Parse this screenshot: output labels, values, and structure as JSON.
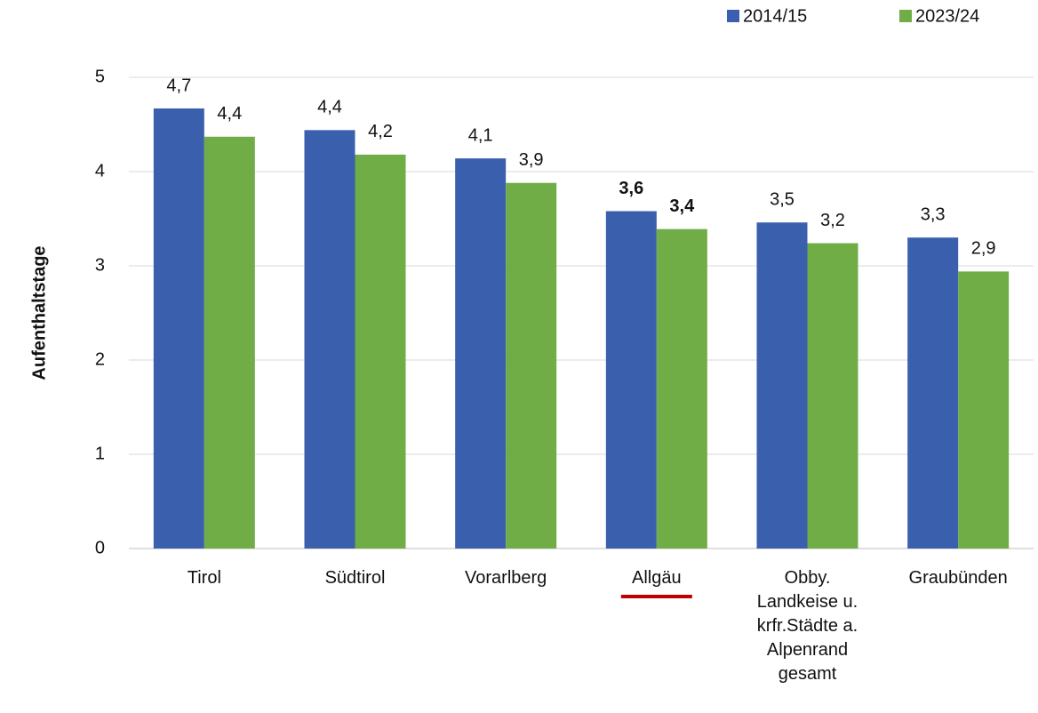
{
  "chart_data": {
    "type": "bar",
    "y_label": "Aufenthaltstage",
    "categories": [
      "Tirol",
      "Südtirol",
      "Vorarlberg",
      "Allgäu",
      "Obby.\nLandkeise u.\nkrfr.Städte a.\nAlpenrand\ngesamt",
      "Graubünden"
    ],
    "series": [
      {
        "name": "2014/15",
        "color": "#3a60ad",
        "values": [
          4.67,
          4.44,
          4.14,
          3.58,
          3.46,
          3.3
        ],
        "value_labels": [
          "4,7",
          "4,4",
          "4,1",
          "3,6",
          "3,5",
          "3,3"
        ]
      },
      {
        "name": "2023/24",
        "color": "#70ad47",
        "values": [
          4.37,
          4.18,
          3.88,
          3.39,
          3.24,
          2.94
        ],
        "value_labels": [
          "4,4",
          "4,2",
          "3,9",
          "3,4",
          "3,2",
          "2,9"
        ]
      }
    ],
    "highlight": "Allgäu",
    "highlight_color": "#c00000",
    "ylim": [
      0,
      5
    ],
    "yticks": [
      0,
      1,
      2,
      3,
      4,
      5
    ],
    "grid": true,
    "legend": "top-right"
  }
}
